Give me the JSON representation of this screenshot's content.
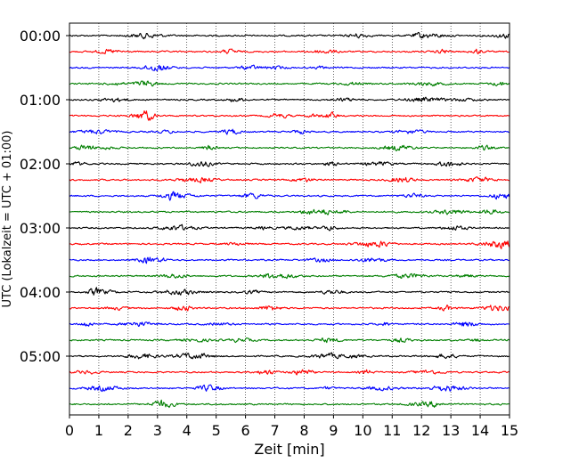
{
  "chart_data": {
    "type": "line",
    "subtype": "seismogram-helicorder",
    "xlabel": "Zeit  [min]",
    "ylabel": "UTC (Lokalzeit = UTC + 01:00)",
    "xlim": [
      0,
      15
    ],
    "x_ticks": [
      "0",
      "1",
      "2",
      "3",
      "4",
      "5",
      "6",
      "7",
      "8",
      "9",
      "10",
      "11",
      "12",
      "13",
      "14",
      "15"
    ],
    "y_tick_labels": [
      "00:00",
      "01:00",
      "02:00",
      "03:00",
      "04:00",
      "05:00"
    ],
    "lines_per_hour": 4,
    "line_count": 24,
    "trace_colors": [
      "#000000",
      "#ff0000",
      "#0000ff",
      "#007f00"
    ],
    "grid": "vertical-dotted"
  }
}
